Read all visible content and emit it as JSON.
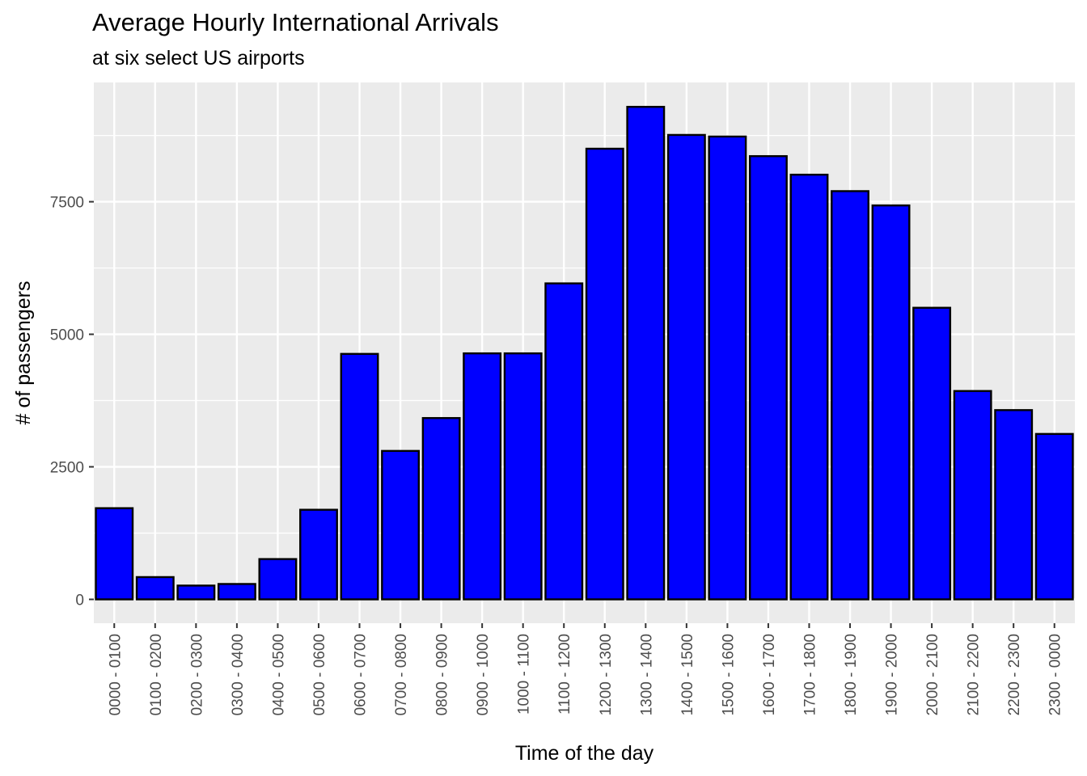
{
  "chart_data": {
    "type": "bar",
    "title": "Average Hourly International Arrivals",
    "subtitle": "at six select US airports",
    "xlabel": "Time of the day",
    "ylabel": "# of passengers",
    "categories": [
      "0000 - 0100",
      "0100 - 0200",
      "0200 - 0300",
      "0300 - 0400",
      "0400 - 0500",
      "0500 - 0600",
      "0600 - 0700",
      "0700 - 0800",
      "0800 - 0900",
      "0900 - 1000",
      "1000 - 1100",
      "1100 - 1200",
      "1200 - 1300",
      "1300 - 1400",
      "1400 - 1500",
      "1500 - 1600",
      "1600 - 1700",
      "1700 - 1800",
      "1800 - 1900",
      "1900 - 2000",
      "2000 - 2100",
      "2100 - 2200",
      "2200 - 2300",
      "2300 - 0000"
    ],
    "values": [
      1720,
      420,
      260,
      290,
      760,
      1690,
      4630,
      2800,
      3420,
      4640,
      4640,
      5960,
      8500,
      9290,
      8760,
      8730,
      8360,
      8010,
      7700,
      7430,
      5500,
      3930,
      3570,
      3120
    ],
    "yticks": [
      0,
      2500,
      5000,
      7500
    ],
    "ylim": [
      -450,
      9750
    ],
    "grid": true,
    "colors": {
      "bar_fill": "#0000FF",
      "bar_stroke": "#000000",
      "panel": "#EBEBEB",
      "grid": "#FFFFFF"
    }
  }
}
